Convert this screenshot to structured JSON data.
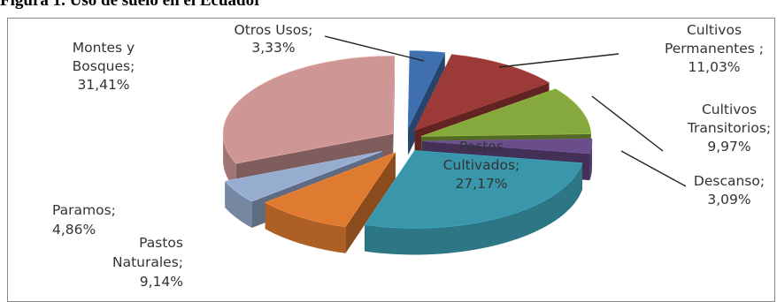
{
  "figure_caption": "Figura 1. Uso de suelo en el Ecuador",
  "chart_data": {
    "type": "pie",
    "variant": "exploded-3d",
    "title": "",
    "slices": [
      {
        "label": "Otros Usos",
        "value": 3.33,
        "value_text": "3,33%",
        "color": "#3f6fae"
      },
      {
        "label": "Cultivos Permanentes",
        "value": 11.03,
        "value_text": "11,03%",
        "color": "#9c3a37"
      },
      {
        "label": "Cultivos Transitorios",
        "value": 9.97,
        "value_text": "9,97%",
        "color": "#86a93e"
      },
      {
        "label": "Descanso",
        "value": 3.09,
        "value_text": "3,09%",
        "color": "#6a4e8c"
      },
      {
        "label": "Pastos Cultivados",
        "value": 27.17,
        "value_text": "27,17%",
        "color": "#3a97ab"
      },
      {
        "label": "Pastos Naturales",
        "value": 9.14,
        "value_text": "9,14%",
        "color": "#de7b31"
      },
      {
        "label": "Paramos",
        "value": 4.86,
        "value_text": "4,86%",
        "color": "#97add0"
      },
      {
        "label": "Montes y Bosques",
        "value": 31.41,
        "value_text": "31,41%",
        "color": "#cf9696"
      }
    ],
    "label_texts": {
      "otros_usos": [
        "Otros Usos;",
        "3,33%"
      ],
      "cultivos_permanentes": [
        "Cultivos",
        "Permanentes ;",
        "11,03%"
      ],
      "cultivos_transitorios": [
        "Cultivos",
        "Transitorios;",
        "9,97%"
      ],
      "descanso": [
        "Descanso;",
        "3,09%"
      ],
      "pastos_cultivados": [
        "Pastos",
        "Cultivados;",
        "27,17%"
      ],
      "pastos_naturales": [
        "Pastos",
        "Naturales;",
        "9,14%"
      ],
      "paramos": [
        "Paramos;",
        "4,86%"
      ],
      "montes_bosques": [
        "Montes y",
        "Bosques;",
        "31,41%"
      ]
    }
  }
}
